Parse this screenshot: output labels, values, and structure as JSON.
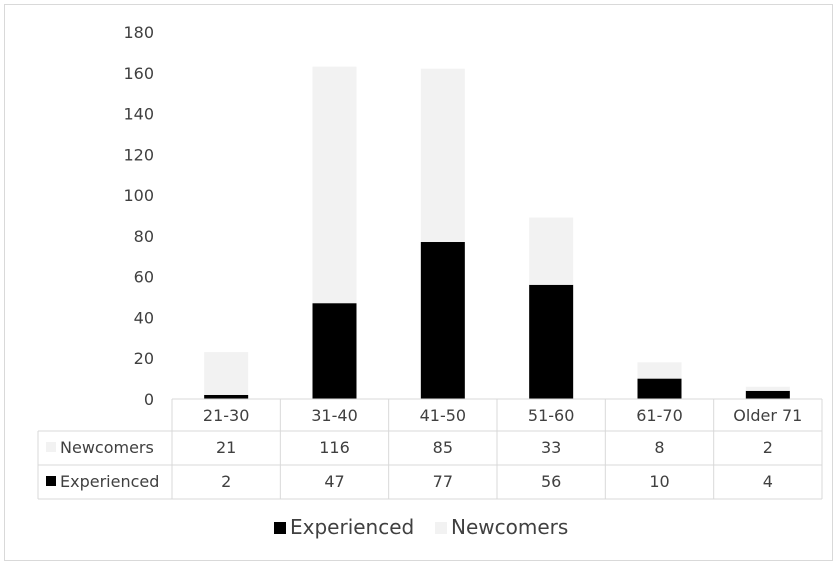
{
  "chart_data": {
    "type": "bar",
    "stacked": true,
    "categories": [
      "21-30",
      "31-40",
      "41-50",
      "51-60",
      "61-70",
      "Older 71"
    ],
    "series": [
      {
        "name": "Experienced",
        "values": [
          2,
          47,
          77,
          56,
          10,
          4
        ],
        "color": "#000000"
      },
      {
        "name": "Newcomers",
        "values": [
          21,
          116,
          85,
          33,
          8,
          2
        ],
        "color": "#f2f2f2"
      }
    ],
    "ylim": [
      0,
      180
    ],
    "yticks": [
      0,
      20,
      40,
      60,
      80,
      100,
      120,
      140,
      160,
      180
    ],
    "grid": false,
    "legend_position": "bottom",
    "data_table": true,
    "table_rows": [
      "Newcomers",
      "Experienced"
    ]
  }
}
